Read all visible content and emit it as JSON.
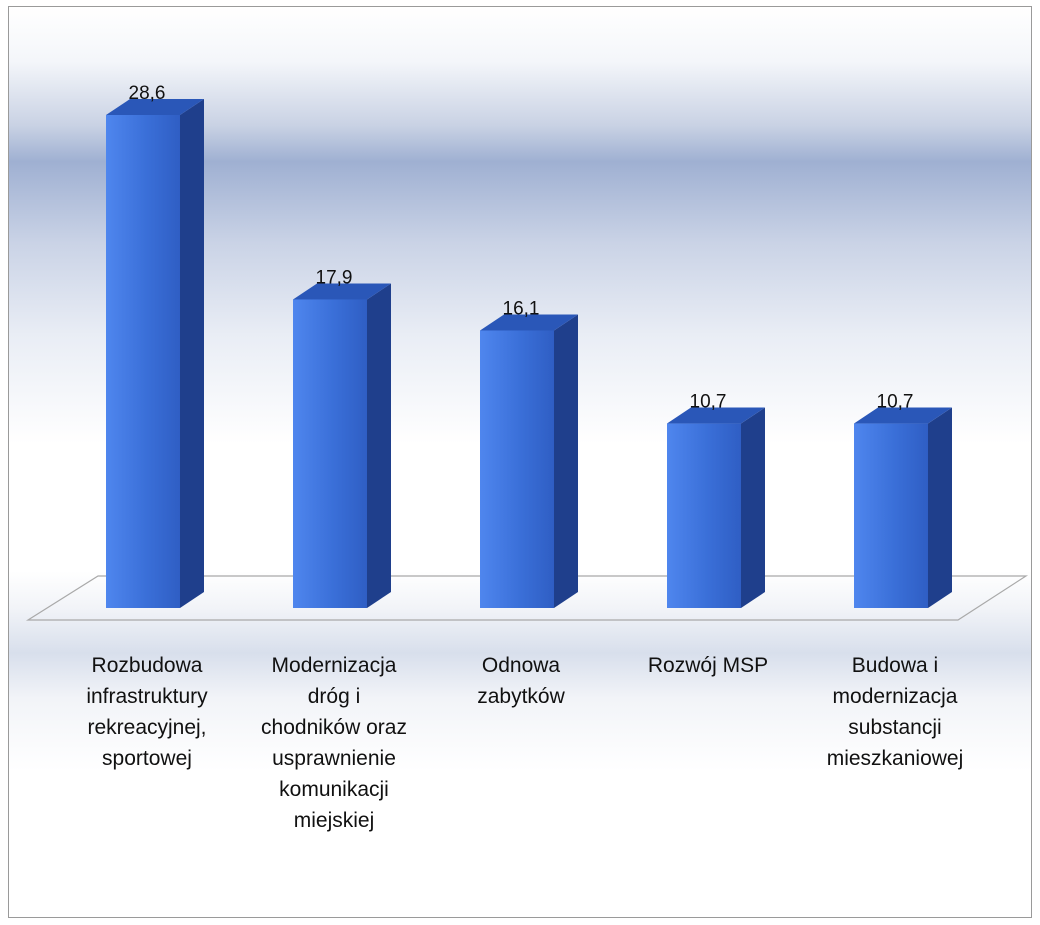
{
  "chart_data": {
    "type": "bar",
    "categories": [
      "Rozbudowa\ninfrastruktury\nrekreacyjnej,\nsportowej",
      "Modernizacja\ndróg i\nchodników oraz\nusprawnienie\nkomunikacji\nmiejskiej",
      "Odnowa\nzabytków",
      "Rozwój MSP",
      "Budowa i\nmodernizacja\nsubstancji\nmieszkaniowej"
    ],
    "values": [
      28.6,
      17.9,
      16.1,
      10.7,
      10.7
    ],
    "data_labels": [
      "28,6",
      "17,9",
      "16,1",
      "10,7",
      "10,7"
    ],
    "title": "",
    "xlabel": "",
    "ylabel": "",
    "ylim": [
      0,
      30
    ],
    "grid": false,
    "bar_style": "3d",
    "colors": {
      "bar_front": "#3a6fd8",
      "bar_side": "#1f3f8c",
      "bar_top": "#2a57b8",
      "floor": "#a9a9a9"
    }
  }
}
